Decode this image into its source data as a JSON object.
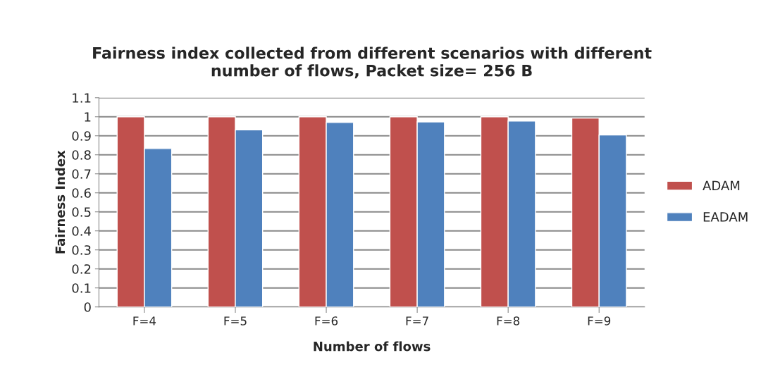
{
  "chart_data": {
    "type": "bar",
    "title": "Fairness index collected from different scenarios with different\nnumber of flows, Packet size= 256 B",
    "xlabel": "Number of flows",
    "ylabel": "Fairness Index",
    "categories": [
      "F=4",
      "F=5",
      "F=6",
      "F=7",
      "F=8",
      "F=9"
    ],
    "series": [
      {
        "name": "ADAM",
        "color": "#c0504d",
        "values": [
          1.0,
          1.0,
          1.0,
          1.0,
          1.0,
          0.993
        ]
      },
      {
        "name": "EADAM",
        "color": "#4f81bd",
        "values": [
          0.833,
          0.931,
          0.97,
          0.973,
          0.978,
          0.904
        ]
      }
    ],
    "ylim": [
      0,
      1.1
    ],
    "yticks": [
      0,
      0.1,
      0.2,
      0.3,
      0.4,
      0.5,
      0.6,
      0.7,
      0.8,
      0.9,
      1,
      1.1
    ],
    "grid": "y",
    "legend": "right"
  }
}
